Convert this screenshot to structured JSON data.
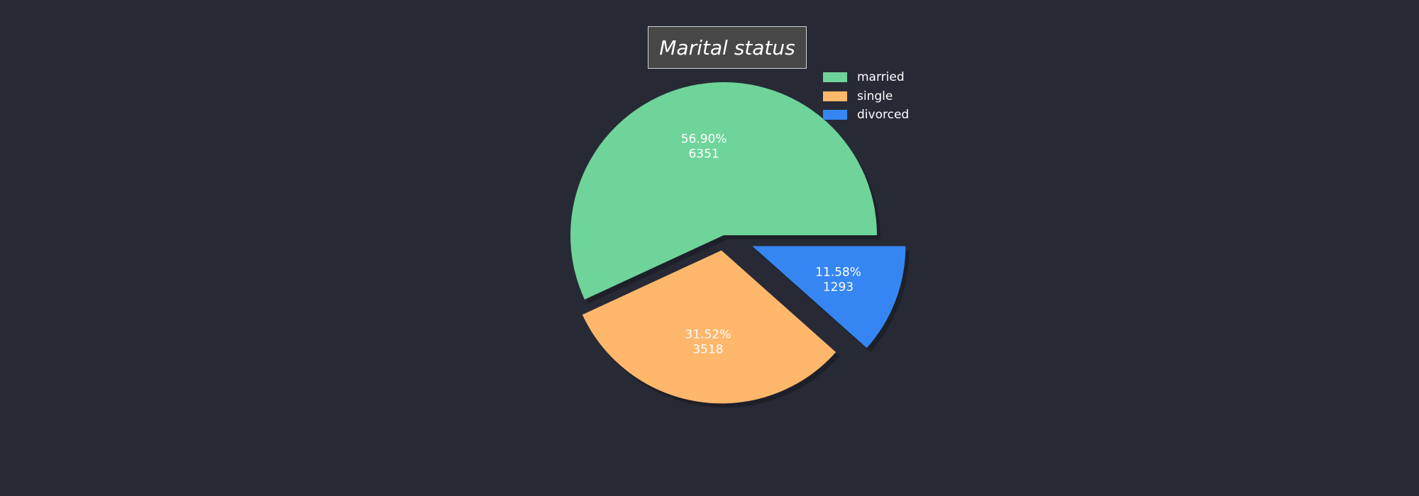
{
  "chart_data": {
    "type": "pie",
    "title": "Marital status",
    "categories": [
      "married",
      "single",
      "divorced"
    ],
    "values": [
      6351,
      3518,
      1293
    ],
    "percent_labels": [
      "56.90%",
      "31.52%",
      "11.58%"
    ],
    "count_labels": [
      "6351",
      "3518",
      "1293"
    ],
    "colors": [
      "#6fd49a",
      "#ffb76b",
      "#3586f2"
    ],
    "exploded": [
      0.0,
      0.1,
      0.2
    ],
    "start_angle_deg": 0,
    "shadow": true,
    "legend_position": "top-right",
    "background_color": "#272a35"
  }
}
